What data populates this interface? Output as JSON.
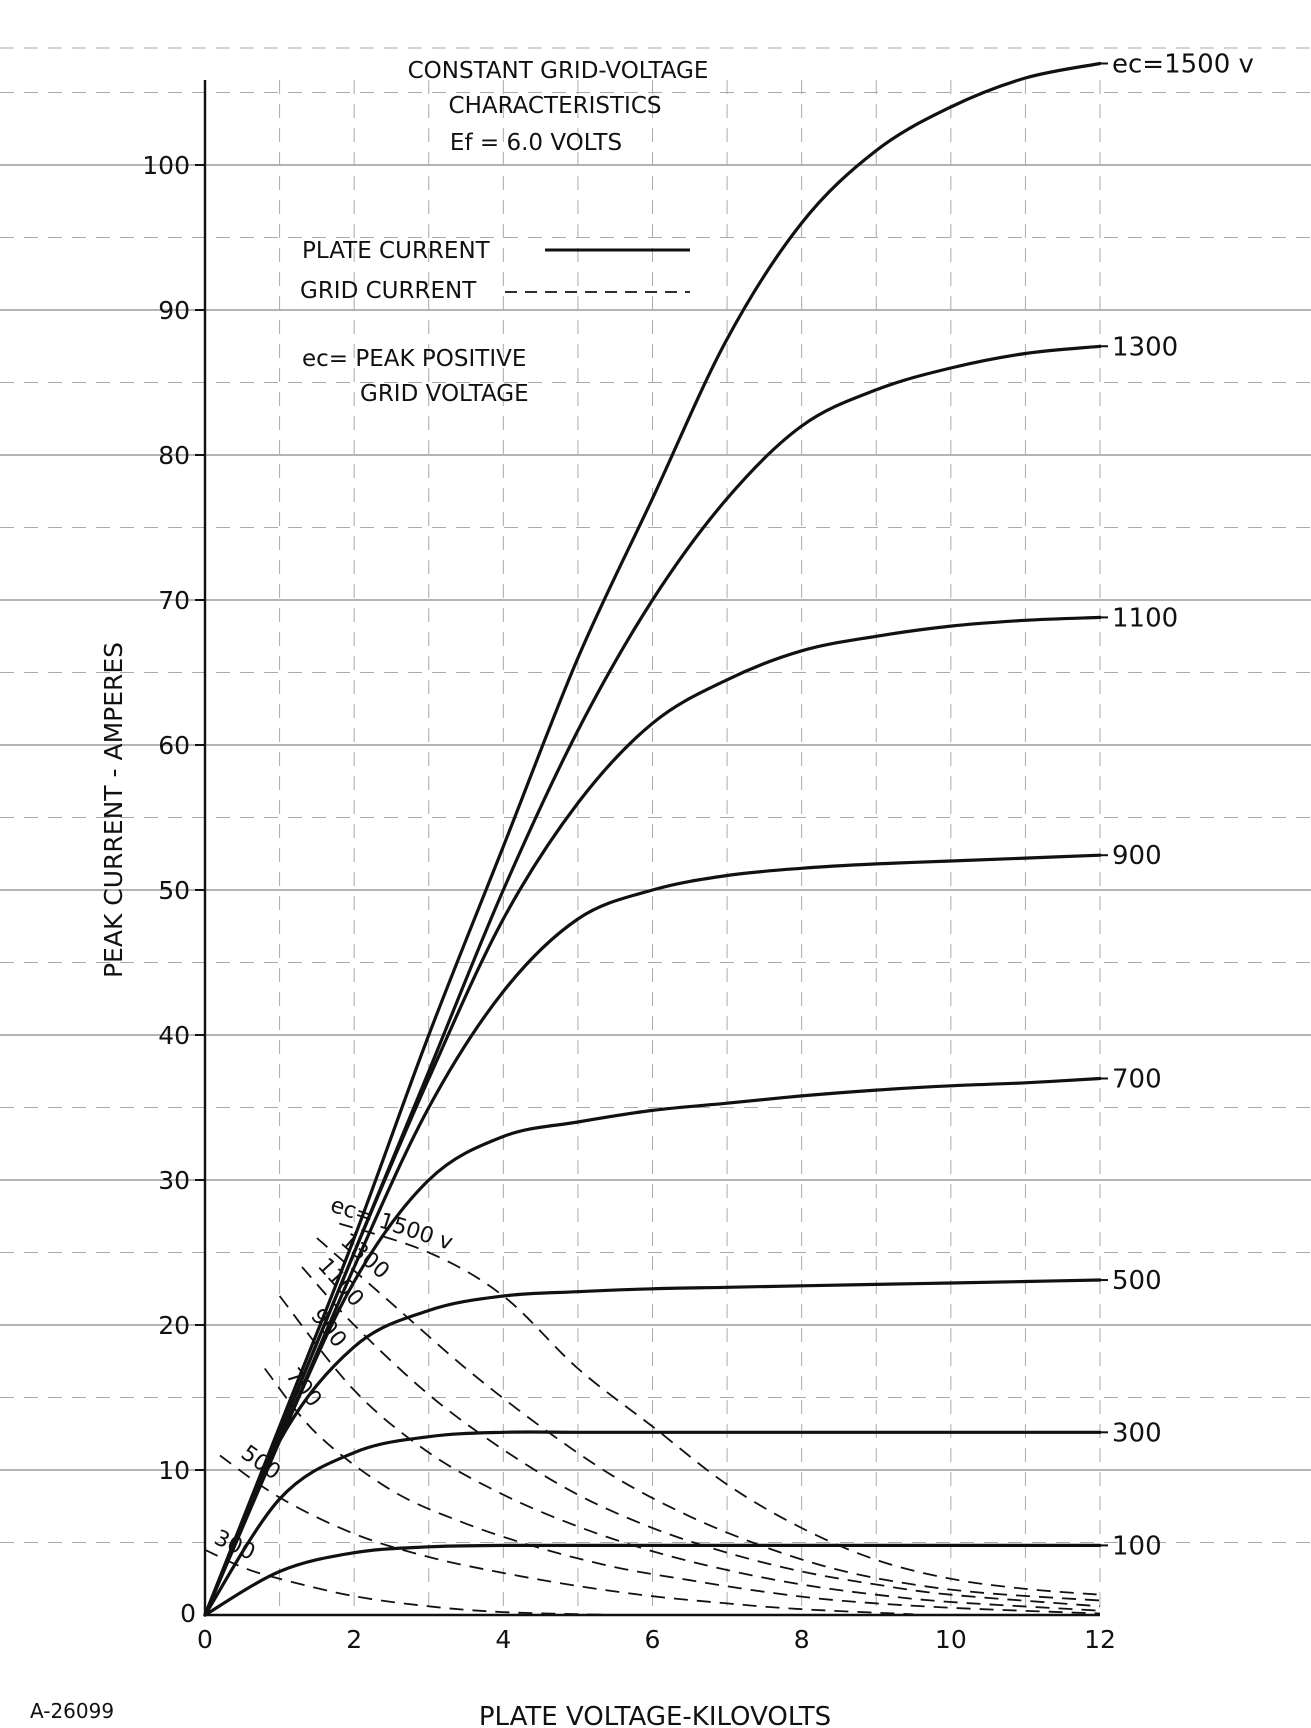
{
  "chart_data": {
    "type": "line",
    "title": [
      "CONSTANT GRID-VOLTAGE",
      "CHARACTERISTICS",
      "Ef = 6.0 VOLTS"
    ],
    "xlabel": "PLATE VOLTAGE-KILOVOLTS",
    "ylabel": "PEAK CURRENT - AMPERES",
    "xlim": [
      0,
      12
    ],
    "ylim": [
      0,
      105
    ],
    "x_ticks": [
      "0",
      "2",
      "4",
      "6",
      "8",
      "10",
      "12"
    ],
    "y_ticks": [
      "0",
      "10",
      "20",
      "30",
      "40",
      "50",
      "60",
      "70",
      "80",
      "90",
      "100"
    ],
    "grid": true,
    "legend": {
      "plate_label": "PLATE CURRENT",
      "grid_label": "GRID CURRENT",
      "ec_line1": "ec= PEAK POSITIVE",
      "ec_line2": "GRID VOLTAGE"
    },
    "figure_id": "A-26099",
    "plate_current": [
      {
        "name": "ec=1500 v",
        "x": [
          0,
          1,
          2,
          3,
          4,
          5,
          6,
          7,
          8,
          9,
          10,
          11,
          12
        ],
        "y": [
          0,
          13,
          26,
          40,
          53,
          66,
          77,
          88,
          96,
          101,
          104,
          106,
          107
        ]
      },
      {
        "name": "1300",
        "x": [
          0,
          1,
          2,
          3,
          4,
          5,
          6,
          7,
          8,
          9,
          10,
          11,
          12
        ],
        "y": [
          0,
          12.5,
          25,
          37.5,
          50,
          61,
          70,
          77,
          82,
          84.5,
          86,
          87,
          87.5
        ]
      },
      {
        "name": "1100",
        "x": [
          0,
          1,
          2,
          3,
          4,
          5,
          6,
          7,
          8,
          9,
          10,
          11,
          12
        ],
        "y": [
          0,
          12.5,
          25,
          37,
          48,
          56,
          61.5,
          64.5,
          66.5,
          67.5,
          68.2,
          68.6,
          68.8
        ]
      },
      {
        "name": "900",
        "x": [
          0,
          1,
          2,
          3,
          4,
          5,
          6,
          7,
          8,
          9,
          10,
          11,
          12
        ],
        "y": [
          0,
          12,
          24,
          35,
          43,
          48,
          50,
          51,
          51.5,
          51.8,
          52,
          52.2,
          52.4
        ]
      },
      {
        "name": "700",
        "x": [
          0,
          1,
          2,
          3,
          4,
          5,
          6,
          7,
          8,
          9,
          10,
          11,
          12
        ],
        "y": [
          0,
          12,
          23,
          30,
          33,
          34,
          34.8,
          35.3,
          35.8,
          36.2,
          36.5,
          36.7,
          37
        ]
      },
      {
        "name": "500",
        "x": [
          0,
          1,
          2,
          3,
          4,
          5,
          6,
          7,
          8,
          9,
          10,
          11,
          12
        ],
        "y": [
          0,
          12,
          18.5,
          21,
          22,
          22.3,
          22.5,
          22.6,
          22.7,
          22.8,
          22.9,
          23,
          23.1
        ]
      },
      {
        "name": "300",
        "x": [
          0,
          1,
          2,
          3,
          4,
          5,
          6,
          7,
          8,
          9,
          10,
          11,
          12
        ],
        "y": [
          0,
          8,
          11.2,
          12.3,
          12.6,
          12.6,
          12.6,
          12.6,
          12.6,
          12.6,
          12.6,
          12.6,
          12.6
        ]
      },
      {
        "name": "100",
        "x": [
          0,
          1,
          2,
          3,
          4,
          5,
          6,
          7,
          8,
          9,
          10,
          11,
          12
        ],
        "y": [
          0,
          3,
          4.3,
          4.7,
          4.8,
          4.8,
          4.8,
          4.8,
          4.8,
          4.8,
          4.8,
          4.8,
          4.8
        ]
      }
    ],
    "grid_current": [
      {
        "name": "ec= 1500 v",
        "x": [
          1.8,
          3,
          4,
          5,
          6,
          7,
          8,
          9,
          10,
          11,
          12
        ],
        "y": [
          27,
          25,
          22,
          17,
          13,
          9,
          6,
          3.8,
          2.5,
          1.8,
          1.4
        ]
      },
      {
        "name": "1300",
        "x": [
          1.5,
          2.5,
          3.5,
          4.5,
          5.5,
          6.5,
          7.5,
          8.5,
          9.5,
          10.5,
          12
        ],
        "y": [
          26,
          21.5,
          17,
          13,
          9.5,
          6.8,
          4.7,
          3.1,
          2.1,
          1.5,
          1.0
        ]
      },
      {
        "name": "1100",
        "x": [
          1.3,
          2,
          3,
          4,
          5,
          6,
          7,
          8,
          9,
          10,
          12
        ],
        "y": [
          24,
          20,
          15.2,
          11.4,
          8.3,
          6,
          4.3,
          3,
          2.1,
          1.4,
          0.6
        ]
      },
      {
        "name": "900",
        "x": [
          1.0,
          2,
          3,
          4,
          5,
          6,
          7,
          8,
          9,
          10,
          12
        ],
        "y": [
          22,
          15.5,
          11.2,
          8.3,
          6.1,
          4.4,
          3.1,
          2.1,
          1.4,
          0.9,
          0.3
        ]
      },
      {
        "name": "700",
        "x": [
          0.8,
          1.5,
          2.5,
          3.5,
          4.5,
          5.5,
          6.5,
          7.5,
          8.5,
          10,
          12
        ],
        "y": [
          17,
          12.5,
          8.6,
          6.3,
          4.6,
          3.3,
          2.4,
          1.6,
          1.0,
          0.5,
          0.1
        ]
      },
      {
        "name": "500",
        "x": [
          0.2,
          1,
          2,
          3,
          4,
          5,
          6,
          7,
          8,
          9.5
        ],
        "y": [
          11,
          8.1,
          5.6,
          4.0,
          2.9,
          2.0,
          1.3,
          0.8,
          0.4,
          0.05
        ]
      },
      {
        "name": "300",
        "x": [
          0,
          0.5,
          1,
          2,
          3,
          4,
          5.5
        ],
        "y": [
          4.5,
          3.3,
          2.5,
          1.3,
          0.6,
          0.2,
          0
        ]
      }
    ]
  }
}
